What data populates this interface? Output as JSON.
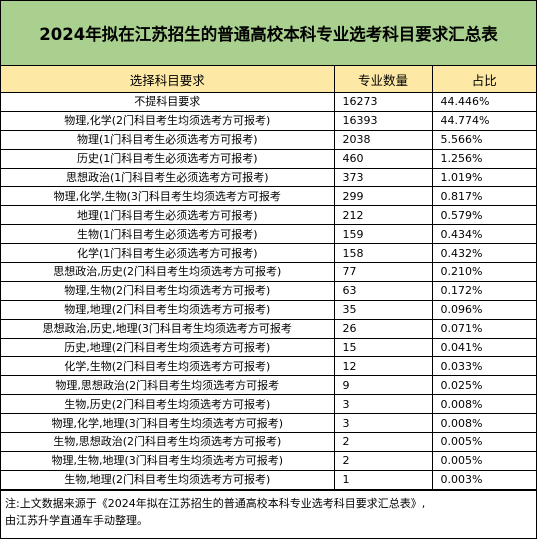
{
  "title": "2024年拟在江苏招生的普通高校本科专业选考科目要求汇总表",
  "columns": [
    "选择科目要求",
    "专业数量",
    "占比"
  ],
  "rows": [
    [
      "不提科目要求",
      "16273",
      "44.446%"
    ],
    [
      "物理,化学(2门科目考生均须选考方可报考)",
      "16393",
      "44.774%"
    ],
    [
      "物理(1门科目考生必须选考方可报考)",
      "2038",
      "5.566%"
    ],
    [
      "历史(1门科目考生必须选考方可报考)",
      "460",
      "1.256%"
    ],
    [
      "思想政治(1门科目考生必须选考方可报考)",
      "373",
      "1.019%"
    ],
    [
      "物理,化学,生物(3门科目考生均须选考方可报考",
      "299",
      "0.817%"
    ],
    [
      "地理(1门科目考生必须选考方可报考)",
      "212",
      "0.579%"
    ],
    [
      "生物(1门科目考生必须选考方可报考)",
      "159",
      "0.434%"
    ],
    [
      "化学(1门科目考生必须选考方可报考)",
      "158",
      "0.432%"
    ],
    [
      "思想政治,历史(2门科目考生均须选考方可报考)",
      "77",
      "0.210%"
    ],
    [
      "物理,生物(2门科目考生均须选考方可报考)",
      "63",
      "0.172%"
    ],
    [
      "物理,地理(2门科目考生均须选考方可报考)",
      "35",
      "0.096%"
    ],
    [
      "思想政治,历史,地理(3门科目考生均须选考方可报考",
      "26",
      "0.071%"
    ],
    [
      "历史,地理(2门科目考生均须选考方可报考)",
      "15",
      "0.041%"
    ],
    [
      "化学,生物(2门科目考生均须选考方可报考)",
      "12",
      "0.033%"
    ],
    [
      "物理,思想政治(2门科目考生均须选考方可报考",
      "9",
      "0.025%"
    ],
    [
      "生物,历史(2门科目考生均须选考方可报考)",
      "3",
      "0.008%"
    ],
    [
      "物理,化学,地理(3门科目考生均须选考方可报考)",
      "3",
      "0.008%"
    ],
    [
      "生物,思想政治(2门科目考生均须选考方可报考)",
      "2",
      "0.005%"
    ],
    [
      "物理,生物,地理(3门科目考生均须选考方可报考)",
      "2",
      "0.005%"
    ],
    [
      "生物,地理(2门科目考生均须选考方可报考)",
      "1",
      "0.003%"
    ]
  ],
  "note_line1": "注:上文数据来源于《2024年拟在江苏招生的普通高校本科专业选考科目要求汇总表》,",
  "note_line2": "由江苏升学直通车手动整理。",
  "colors": {
    "title_bg": "#a9d08e",
    "header_bg": "#fde9a5"
  }
}
